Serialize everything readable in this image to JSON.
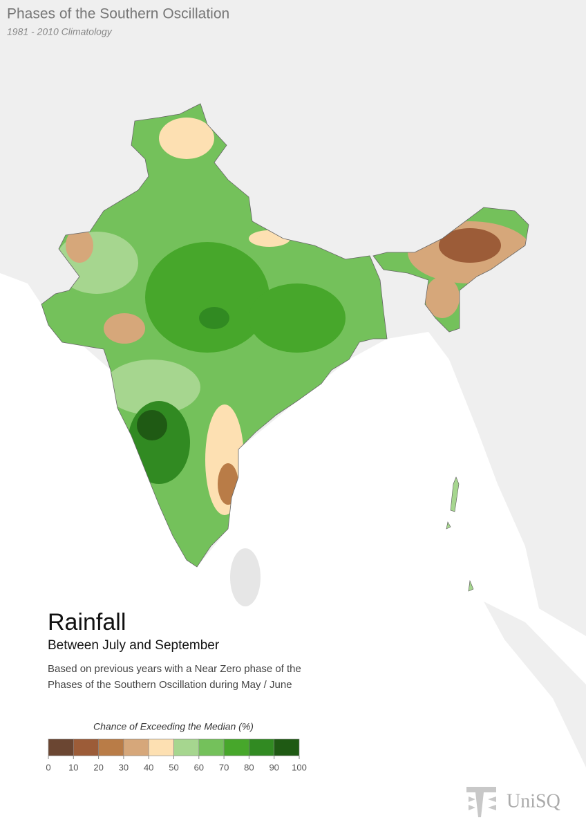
{
  "header": {
    "title": "Phases of the Southern Oscillation",
    "subtitle": "1981 - 2010 Climatology"
  },
  "panel": {
    "heading": "Rainfall",
    "subheading": "Between July and September",
    "description": [
      "Based on previous years with a Near Zero phase of the",
      "Phases of the Southern Oscillation during May / June"
    ]
  },
  "legend": {
    "title": "Chance of Exceeding the Median (%)",
    "ticks": [
      0,
      10,
      20,
      30,
      40,
      50,
      60,
      70,
      80,
      90,
      100
    ],
    "colors": [
      "#6b4632",
      "#9c5c38",
      "#b97c47",
      "#d6a77a",
      "#fde0b2",
      "#a6d68f",
      "#74c15b",
      "#47a72b",
      "#318a22",
      "#1f5a14"
    ]
  },
  "logo": {
    "text": "UniSQ"
  }
}
